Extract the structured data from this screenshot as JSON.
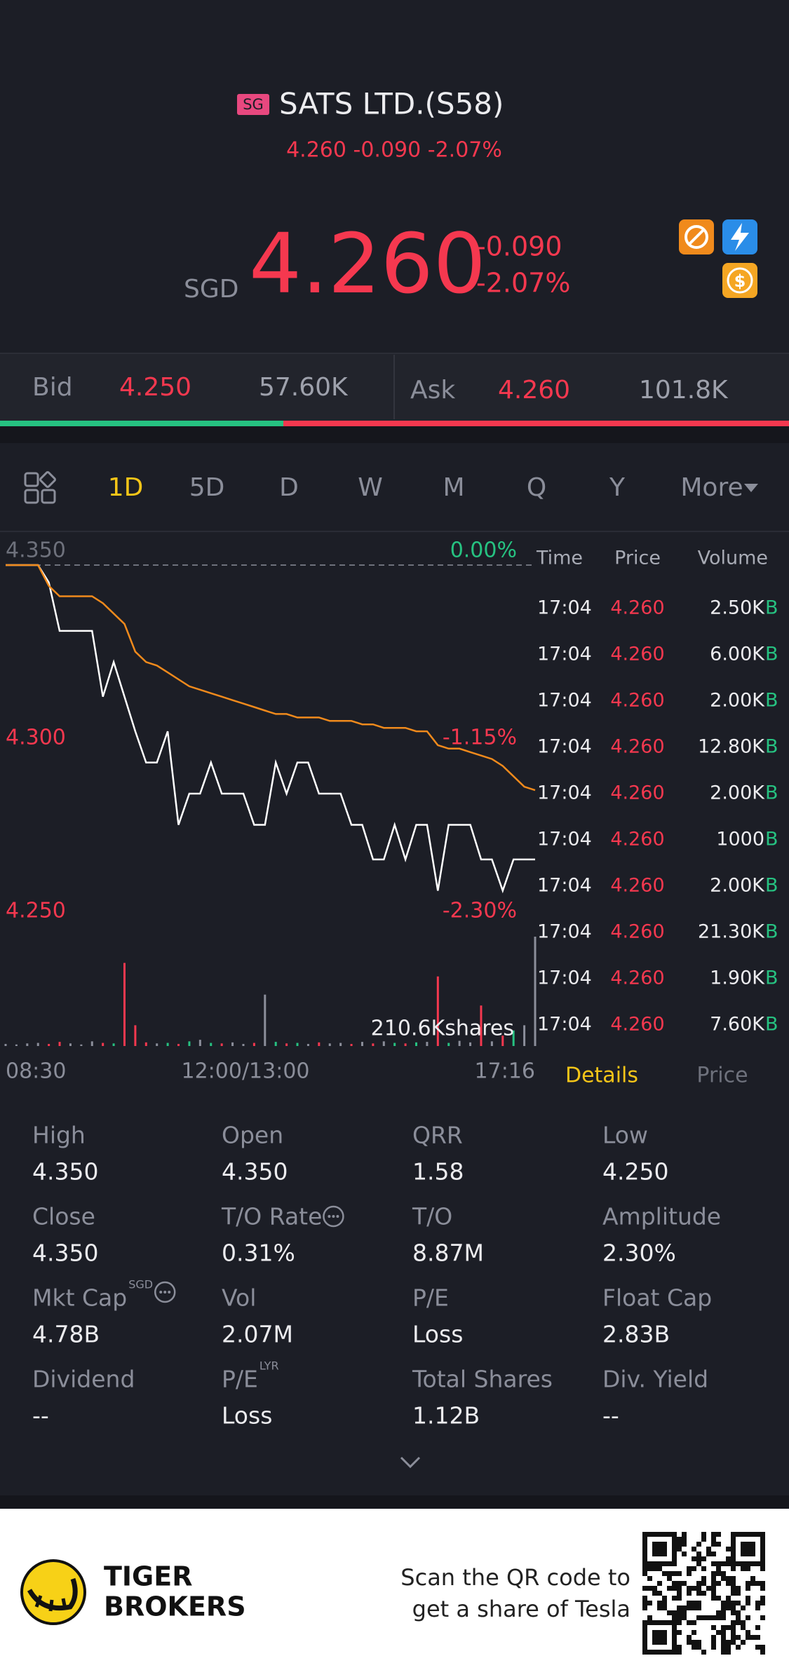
{
  "header": {
    "badge": "SG",
    "title": "SATS LTD.(S58)",
    "subtitle": "4.260 -0.090 -2.07%"
  },
  "quote": {
    "currency": "SGD",
    "price": "4.260",
    "change": "-0.090",
    "change_pct": "-2.07%"
  },
  "bidask": {
    "bid_label": "Bid",
    "bid_price": "4.250",
    "bid_size": "57.60K",
    "ask_label": "Ask",
    "ask_price": "4.260",
    "ask_size": "101.8K"
  },
  "tabs": [
    "1D",
    "5D",
    "D",
    "W",
    "M",
    "Q",
    "Y",
    "More"
  ],
  "chart_data": {
    "type": "line",
    "ylim": [
      4.25,
      4.35
    ],
    "yticks": [
      {
        "value": 4.35,
        "label": "4.350"
      },
      {
        "value": 4.3,
        "label": "4.300"
      },
      {
        "value": 4.25,
        "label": "4.250"
      }
    ],
    "y2lim": [
      -2.3,
      0
    ],
    "y2ticks": [
      {
        "value": 0,
        "label": "0.00%"
      },
      {
        "value": -1.15,
        "label": "-1.15%"
      },
      {
        "value": -2.3,
        "label": "-2.30%"
      }
    ],
    "time_labels": [
      "08:30",
      "12:00/13:00",
      "17:16"
    ],
    "series": [
      {
        "color": "#ffffff",
        "values": [
          4.35,
          4.35,
          4.35,
          4.35,
          4.345,
          4.331,
          4.331,
          4.331,
          4.331,
          4.312,
          4.322,
          4.312,
          4.302,
          4.293,
          4.293,
          4.302,
          4.275,
          4.284,
          4.284,
          4.293,
          4.284,
          4.284,
          4.284,
          4.275,
          4.275,
          4.293,
          4.284,
          4.293,
          4.293,
          4.284,
          4.284,
          4.284,
          4.275,
          4.275,
          4.265,
          4.265,
          4.275,
          4.265,
          4.275,
          4.275,
          4.256,
          4.275,
          4.275,
          4.275,
          4.265,
          4.265,
          4.256,
          4.265,
          4.265,
          4.265
        ]
      },
      {
        "color": "#f08a1c",
        "values": [
          4.35,
          4.35,
          4.35,
          4.35,
          4.344,
          4.341,
          4.341,
          4.341,
          4.341,
          4.339,
          4.336,
          4.333,
          4.325,
          4.322,
          4.321,
          4.319,
          4.317,
          4.315,
          4.314,
          4.313,
          4.312,
          4.311,
          4.31,
          4.309,
          4.308,
          4.307,
          4.307,
          4.306,
          4.306,
          4.306,
          4.305,
          4.305,
          4.305,
          4.304,
          4.304,
          4.303,
          4.303,
          4.303,
          4.302,
          4.302,
          4.298,
          4.297,
          4.297,
          4.296,
          4.295,
          4.294,
          4.292,
          4.289,
          4.286,
          4.285
        ]
      }
    ],
    "volume": {
      "label": "210.6Kshares",
      "ylim": [
        0,
        210.6
      ],
      "up_color": "#26c281",
      "down_color": "#f5384f",
      "flat_color": "#8b8e9a",
      "values": [
        4,
        3,
        5,
        6,
        4,
        8,
        5,
        3,
        9,
        6,
        5,
        160,
        40,
        7,
        5,
        6,
        4,
        9,
        12,
        6,
        5,
        7,
        4,
        6,
        99,
        8,
        5,
        6,
        4,
        7,
        5,
        6,
        4,
        8,
        5,
        9,
        6,
        5,
        7,
        8,
        134,
        6,
        10,
        7,
        78,
        9,
        20,
        30,
        40,
        210.6
      ]
    }
  },
  "trades": {
    "headers": [
      "Time",
      "Price",
      "Volume"
    ],
    "rows": [
      {
        "time": "17:04",
        "price": "4.260",
        "volume": "2.50K",
        "side": "B"
      },
      {
        "time": "17:04",
        "price": "4.260",
        "volume": "6.00K",
        "side": "B"
      },
      {
        "time": "17:04",
        "price": "4.260",
        "volume": "2.00K",
        "side": "B"
      },
      {
        "time": "17:04",
        "price": "4.260",
        "volume": "12.80K",
        "side": "B"
      },
      {
        "time": "17:04",
        "price": "4.260",
        "volume": "2.00K",
        "side": "B"
      },
      {
        "time": "17:04",
        "price": "4.260",
        "volume": "1000",
        "side": "B"
      },
      {
        "time": "17:04",
        "price": "4.260",
        "volume": "2.00K",
        "side": "B"
      },
      {
        "time": "17:04",
        "price": "4.260",
        "volume": "21.30K",
        "side": "B"
      },
      {
        "time": "17:04",
        "price": "4.260",
        "volume": "1.90K",
        "side": "B"
      },
      {
        "time": "17:04",
        "price": "4.260",
        "volume": "7.60K",
        "side": "B"
      }
    ]
  },
  "panel_tabs": [
    "Details",
    "Price"
  ],
  "stats": [
    {
      "label": "High",
      "value": "4.350"
    },
    {
      "label": "Open",
      "value": "4.350"
    },
    {
      "label": "QRR",
      "value": "1.58"
    },
    {
      "label": "Low",
      "value": "4.250"
    },
    {
      "label": "Close",
      "value": "4.350"
    },
    {
      "label": "T/O Rate",
      "value": "0.31%"
    },
    {
      "label": "T/O",
      "value": "8.87M"
    },
    {
      "label": "Amplitude",
      "value": "2.30%"
    },
    {
      "label": "Mkt Cap",
      "sup": "SGD",
      "value": "4.78B"
    },
    {
      "label": "Vol",
      "value": "2.07M"
    },
    {
      "label": "P/E",
      "value": "Loss"
    },
    {
      "label": "Float Cap",
      "value": "2.83B"
    },
    {
      "label": "Dividend",
      "value": "--"
    },
    {
      "label": "P/E",
      "sup": "LYR",
      "value": "Loss"
    },
    {
      "label": "Total Shares",
      "value": "1.12B"
    },
    {
      "label": "Div. Yield",
      "value": "--"
    }
  ],
  "footer": {
    "brand": [
      "TIGER",
      "BROKERS"
    ],
    "promo": [
      "Scan the QR code to",
      "get a share of Tesla"
    ]
  }
}
